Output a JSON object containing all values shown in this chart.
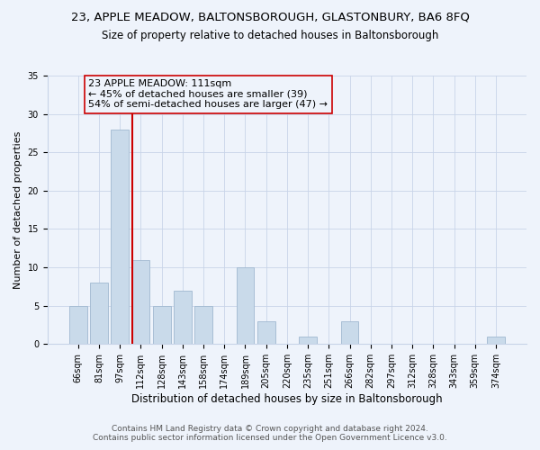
{
  "title": "23, APPLE MEADOW, BALTONSBOROUGH, GLASTONBURY, BA6 8FQ",
  "subtitle": "Size of property relative to detached houses in Baltonsborough",
  "xlabel": "Distribution of detached houses by size in Baltonsborough",
  "ylabel": "Number of detached properties",
  "bin_labels": [
    "66sqm",
    "81sqm",
    "97sqm",
    "112sqm",
    "128sqm",
    "143sqm",
    "158sqm",
    "174sqm",
    "189sqm",
    "205sqm",
    "220sqm",
    "235sqm",
    "251sqm",
    "266sqm",
    "282sqm",
    "297sqm",
    "312sqm",
    "328sqm",
    "343sqm",
    "359sqm",
    "374sqm"
  ],
  "bar_values": [
    5,
    8,
    28,
    11,
    5,
    7,
    5,
    0,
    10,
    3,
    0,
    1,
    0,
    3,
    0,
    0,
    0,
    0,
    0,
    0,
    1
  ],
  "bar_color": "#c9daea",
  "bar_edgecolor": "#a0b8d0",
  "ylim": [
    0,
    35
  ],
  "yticks": [
    0,
    5,
    10,
    15,
    20,
    25,
    30,
    35
  ],
  "vline_color": "#cc0000",
  "annotation_text": "23 APPLE MEADOW: 111sqm\n← 45% of detached houses are smaller (39)\n54% of semi-detached houses are larger (47) →",
  "annotation_box_edgecolor": "#cc0000",
  "footnote1": "Contains HM Land Registry data © Crown copyright and database right 2024.",
  "footnote2": "Contains public sector information licensed under the Open Government Licence v3.0.",
  "background_color": "#eef3fb",
  "grid_color": "#c8d4e8",
  "title_fontsize": 9.5,
  "subtitle_fontsize": 8.5,
  "xlabel_fontsize": 8.5,
  "ylabel_fontsize": 8,
  "tick_fontsize": 7,
  "annotation_fontsize": 8,
  "footnote_fontsize": 6.5
}
